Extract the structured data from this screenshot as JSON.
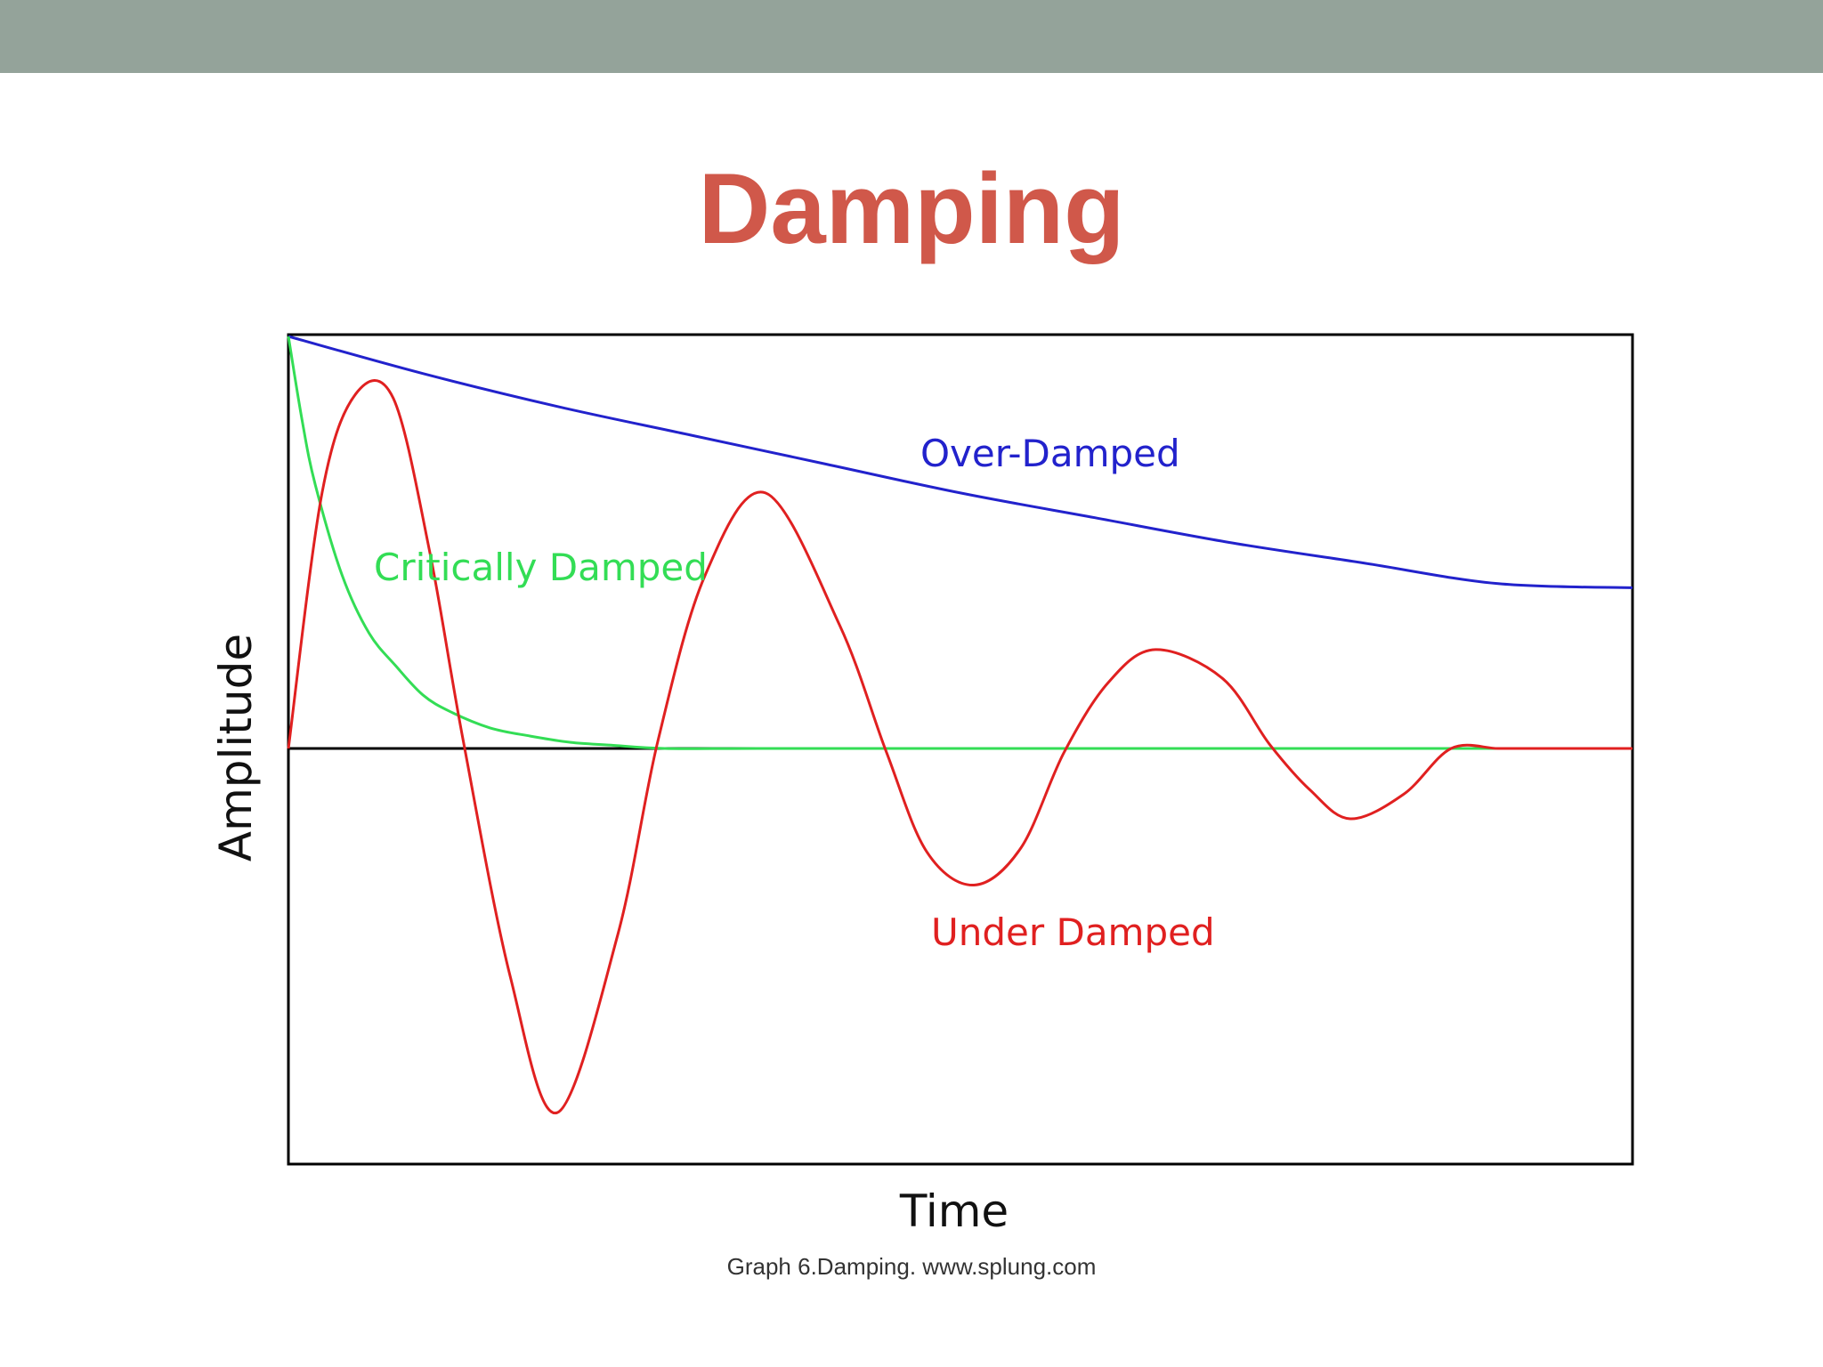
{
  "slide": {
    "title": "Damping",
    "caption": "Graph 6.Damping. www.splung.com",
    "colors": {
      "top_band": "#94a39a",
      "title": "#d0584a"
    }
  },
  "chart_data": {
    "type": "line",
    "title": "",
    "xlabel": "Time",
    "ylabel": "Amplitude",
    "xlim": [
      0,
      1
    ],
    "ylim": [
      -1,
      1
    ],
    "grid": false,
    "zero_line": true,
    "series": [
      {
        "name": "Over-Damped",
        "color": "#2222cc",
        "x": [
          0,
          0.1,
          0.2,
          0.3,
          0.4,
          0.5,
          0.6,
          0.7,
          0.8,
          0.9,
          1.0
        ],
        "y": [
          1.0,
          0.91,
          0.83,
          0.76,
          0.69,
          0.62,
          0.56,
          0.5,
          0.45,
          0.4,
          0.39
        ]
      },
      {
        "name": "Critically Damped",
        "color": "#33dd55",
        "x": [
          0,
          0.01,
          0.02,
          0.04,
          0.06,
          0.08,
          0.1,
          0.12,
          0.15,
          0.18,
          0.21,
          0.24,
          0.28,
          0.35,
          0.5,
          0.75,
          1.0
        ],
        "y": [
          1.0,
          0.8,
          0.64,
          0.42,
          0.28,
          0.2,
          0.13,
          0.09,
          0.05,
          0.03,
          0.015,
          0.008,
          0.0,
          0.0,
          0.0,
          0.0,
          0.0
        ]
      },
      {
        "name": "Under Damped",
        "color": "#e02020",
        "x": [
          0,
          0.025,
          0.05,
          0.078,
          0.105,
          0.13,
          0.165,
          0.2,
          0.245,
          0.275,
          0.31,
          0.355,
          0.41,
          0.445,
          0.475,
          0.51,
          0.545,
          0.577,
          0.61,
          0.645,
          0.695,
          0.73,
          0.76,
          0.79,
          0.83,
          0.865,
          0.9,
          0.93,
          0.96,
          1.0
        ],
        "y": [
          0.0,
          0.62,
          0.86,
          0.85,
          0.48,
          0.02,
          -0.55,
          -0.88,
          -0.45,
          0.02,
          0.42,
          0.62,
          0.3,
          -0.01,
          -0.25,
          -0.33,
          -0.24,
          -0.01,
          0.16,
          0.24,
          0.17,
          0.01,
          -0.1,
          -0.17,
          -0.11,
          0.0,
          0.0,
          0.0,
          0.0,
          0.0
        ]
      }
    ],
    "annotations": [
      {
        "text": "Over-Damped",
        "series": "Over-Damped"
      },
      {
        "text": "Critically Damped",
        "series": "Critically Damped"
      },
      {
        "text": "Under Damped",
        "series": "Under Damped"
      }
    ]
  }
}
